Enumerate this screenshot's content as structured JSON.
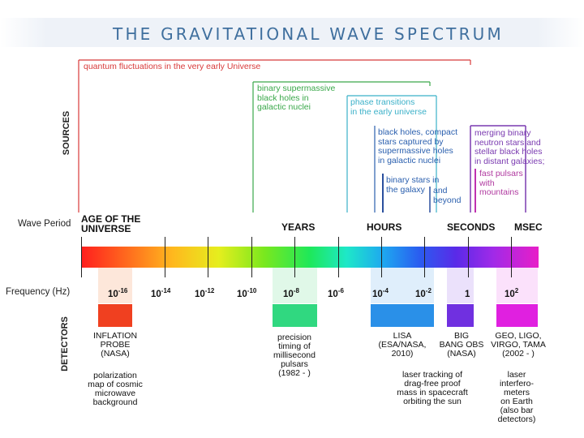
{
  "title": "THE GRAVITATIONAL WAVE SPECTRUM",
  "labels": {
    "sources": "SOURCES",
    "detectors": "DETECTORS",
    "wave_period": "Wave Period",
    "frequency": "Frequency (Hz)"
  },
  "sources": [
    {
      "text": "quantum fluctuations in the very early Universe",
      "color": "#d83a3a"
    },
    {
      "text": "binary supermassive\nblack holes in\ngalactic nuclei",
      "color": "#3aa84a"
    },
    {
      "text": "phase transitions\nin the early universe",
      "color": "#3ab0c8"
    },
    {
      "text": "black holes, compact\nstars captured by\nsupermassive holes\nin galactic nuclei",
      "color": "#2a5fae"
    },
    {
      "text": "binary stars in\nthe galaxy",
      "color": "#2a5fae"
    },
    {
      "text": "and\nbeyond",
      "color": "#2a5fae"
    },
    {
      "text": "merging binary\nneutron stars and\nstellar black holes\nin distant galaxies;",
      "color": "#7a3ab0"
    },
    {
      "text": "fast pulsars\nwith\nmountains",
      "color": "#b03aa0"
    }
  ],
  "periods": [
    "AGE OF THE\nUNIVERSE",
    "YEARS",
    "HOURS",
    "SECONDS",
    "MSEC"
  ],
  "frequencies": [
    {
      "base": "10",
      "exp": "-16"
    },
    {
      "base": "10",
      "exp": "-14"
    },
    {
      "base": "10",
      "exp": "-12"
    },
    {
      "base": "10",
      "exp": "-10"
    },
    {
      "base": "10",
      "exp": "-8"
    },
    {
      "base": "10",
      "exp": "-6"
    },
    {
      "base": "10",
      "exp": "-4"
    },
    {
      "base": "10",
      "exp": "-2"
    },
    {
      "base": "1",
      "exp": ""
    },
    {
      "base": "10",
      "exp": "2"
    }
  ],
  "detectors": [
    {
      "name": "INFLATION\nPROBE\n(NASA)",
      "desc": "polarization\nmap of cosmic\nmicrowave\nbackground",
      "color": "#f04020"
    },
    {
      "name": "precision\ntiming of\nmillisecond\npulsars\n(1982 - )",
      "desc": "",
      "color": "#30d880"
    },
    {
      "name": "LISA\n(ESA/NASA,\n2010)",
      "desc": "laser tracking of\ndrag-free proof\nmass in spacecraft\norbiting the sun",
      "color": "#2a90e8"
    },
    {
      "name": "BIG\nBANG OBS\n(NASA)",
      "desc": "",
      "color": "#7030e0"
    },
    {
      "name": "GEO, LIGO,\nVIRGO, TAMA\n(2002 - )",
      "desc": "laser\ninterfero-\nmeters\non Earth\n(also bar\ndetectors)",
      "color": "#e020e0"
    }
  ]
}
